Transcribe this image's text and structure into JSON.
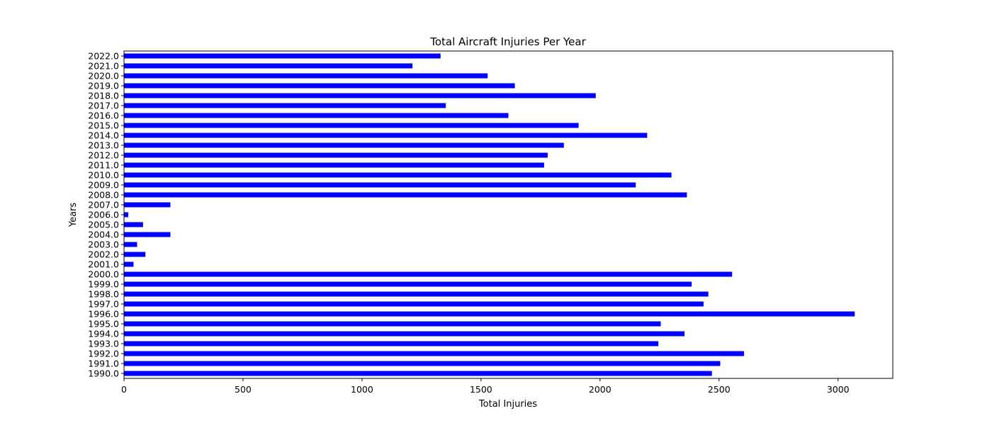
{
  "chart_data": {
    "type": "bar",
    "orientation": "horizontal",
    "title": "Total Aircraft Injuries Per Year",
    "xlabel": "Total Injuries",
    "ylabel": "Years",
    "xlim": [
      0,
      3230
    ],
    "xticks": [
      0,
      500,
      1000,
      1500,
      2000,
      2500,
      3000
    ],
    "grid": false,
    "legend": "none",
    "bar_color": "#0000ff",
    "categories": [
      "1990.0",
      "1991.0",
      "1992.0",
      "1993.0",
      "1994.0",
      "1995.0",
      "1996.0",
      "1997.0",
      "1998.0",
      "1999.0",
      "2000.0",
      "2001.0",
      "2002.0",
      "2003.0",
      "2004.0",
      "2005.0",
      "2006.0",
      "2007.0",
      "2008.0",
      "2009.0",
      "2010.0",
      "2011.0",
      "2012.0",
      "2013.0",
      "2014.0",
      "2015.0",
      "2016.0",
      "2017.0",
      "2018.0",
      "2019.0",
      "2020.0",
      "2021.0",
      "2022.0"
    ],
    "values": [
      2470,
      2505,
      2605,
      2245,
      2355,
      2255,
      3070,
      2435,
      2455,
      2385,
      2555,
      40,
      90,
      55,
      195,
      80,
      18,
      195,
      2365,
      2150,
      2300,
      1765,
      1780,
      1848,
      2198,
      1910,
      1615,
      1352,
      1982,
      1642,
      1528,
      1212,
      1330
    ]
  }
}
